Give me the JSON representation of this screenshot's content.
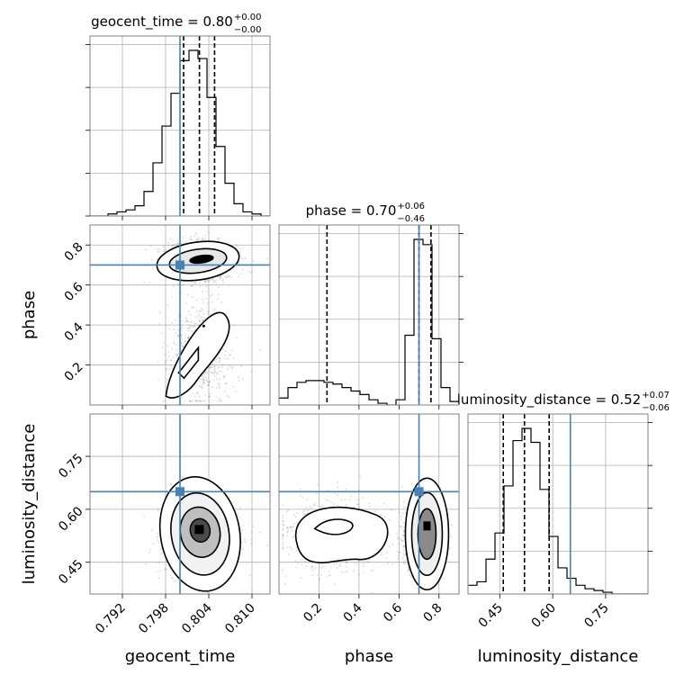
{
  "chart_data": {
    "type": "corner",
    "parameters": [
      "geocent_time",
      "phase",
      "luminosity_distance"
    ],
    "truth_color": "#4682b4",
    "truths": [
      0.8,
      0.7,
      0.65
    ],
    "ranges": [
      [
        0.7875,
        0.8125
      ],
      [
        0.0,
        0.9
      ],
      [
        0.36,
        0.87
      ]
    ],
    "ticks": {
      "geocent_time": [
        "0.792",
        "0.798",
        "0.804",
        "0.810"
      ],
      "phase": [
        "0.2",
        "0.4",
        "0.6",
        "0.8"
      ],
      "luminosity_distance": [
        "0.45",
        "0.60",
        "0.75"
      ]
    },
    "titles": [
      {
        "label": "geocent_time = 0.80",
        "upper": "+0.00",
        "lower": "−0.00"
      },
      {
        "label": "phase = 0.70",
        "upper": "+0.06",
        "lower": "−0.46"
      },
      {
        "label": "luminosity_distance = 0.52",
        "upper": "+0.07",
        "lower": "−0.06"
      }
    ],
    "quantiles": {
      "geocent_time": [
        0.8005,
        0.8027,
        0.8048
      ],
      "phase": [
        0.24,
        0.7,
        0.76
      ],
      "luminosity_distance": [
        0.46,
        0.52,
        0.59
      ]
    },
    "histograms": {
      "geocent_time": {
        "edges": [
          0.7875,
          0.78875,
          0.79,
          0.79125,
          0.7925,
          0.79375,
          0.795,
          0.79625,
          0.7975,
          0.79875,
          0.8,
          0.80125,
          0.8025,
          0.80375,
          0.805,
          0.80625,
          0.8075,
          0.80875,
          0.81,
          0.81125,
          0.8125
        ],
        "counts": [
          0,
          0,
          1,
          2,
          3,
          5,
          12,
          26,
          44,
          60,
          76,
          81,
          77,
          58,
          34,
          16,
          6,
          2,
          1,
          0
        ]
      },
      "phase": {
        "edges": [
          0.0,
          0.045,
          0.09,
          0.135,
          0.18,
          0.225,
          0.27,
          0.315,
          0.36,
          0.405,
          0.45,
          0.495,
          0.54,
          0.585,
          0.63,
          0.675,
          0.72,
          0.765,
          0.81,
          0.855,
          0.9
        ],
        "counts": [
          4,
          10,
          13,
          14,
          14,
          13,
          12,
          10,
          8,
          6,
          3,
          1,
          0,
          3,
          40,
          95,
          92,
          38,
          10,
          2
        ]
      },
      "luminosity_distance": {
        "edges": [
          0.36,
          0.3855,
          0.411,
          0.4365,
          0.462,
          0.4875,
          0.513,
          0.5385,
          0.564,
          0.5895,
          0.615,
          0.6405,
          0.666,
          0.6915,
          0.717,
          0.7425,
          0.768,
          0.7935,
          0.819,
          0.8445,
          0.87
        ],
        "counts": [
          5,
          7,
          20,
          35,
          62,
          88,
          95,
          87,
          60,
          33,
          15,
          9,
          5,
          3,
          2,
          1,
          0,
          0,
          0,
          0
        ]
      }
    }
  }
}
